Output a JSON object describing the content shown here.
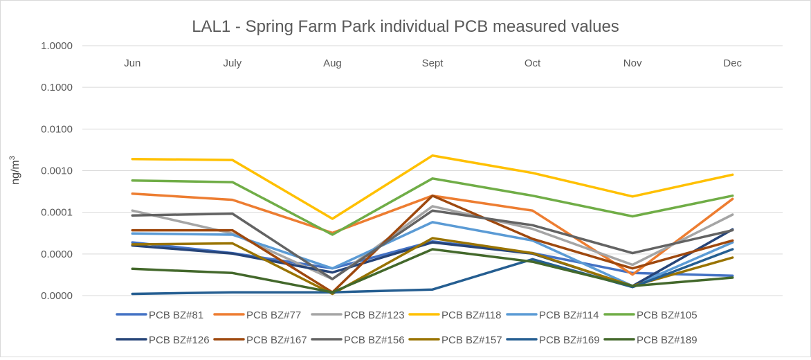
{
  "chart_data": {
    "type": "line",
    "title": "LAL1 - Spring Farm Park individual PCB measured values",
    "xlabel": "",
    "ylabel_base": "ng/m",
    "ylabel_sup": "3",
    "y_scale": "log",
    "ylim": [
      1e-06,
      1
    ],
    "y_tick_values": [
      1e-06,
      1e-05,
      0.0001,
      0.001,
      0.01,
      0.1,
      1
    ],
    "y_tick_labels": [
      "0.0000",
      "0.0000",
      "0.0001",
      "0.0010",
      "0.0100",
      "0.1000",
      "1.0000"
    ],
    "categories": [
      "Jun",
      "July",
      "Aug",
      "Sept",
      "Oct",
      "Nov",
      "Dec"
    ],
    "grid": true,
    "legend_position": "bottom",
    "series": [
      {
        "name": "PCB BZ#81",
        "color": "#4472C4",
        "values": [
          1.9e-05,
          1.05e-05,
          4.5e-06,
          2e-05,
          1.05e-05,
          3.5e-06,
          3e-06
        ]
      },
      {
        "name": "PCB BZ#77",
        "color": "#ED7D31",
        "values": [
          0.00028,
          0.0002,
          3.2e-05,
          0.00025,
          0.00011,
          3.2e-06,
          0.00021
        ]
      },
      {
        "name": "PCB BZ#123",
        "color": "#A5A5A5",
        "values": [
          0.00011,
          3.1e-05,
          2.5e-06,
          0.00014,
          4e-05,
          5.5e-06,
          8.8e-05
        ]
      },
      {
        "name": "PCB BZ#118",
        "color": "#FFC000",
        "values": [
          0.0019,
          0.0018,
          7e-05,
          0.0023,
          0.00088,
          0.00024,
          0.0008
        ]
      },
      {
        "name": "PCB BZ#114",
        "color": "#5B9BD5",
        "values": [
          3.1e-05,
          2.9e-05,
          4.5e-06,
          5.8e-05,
          2.1e-05,
          1.7e-06,
          1.9e-05
        ]
      },
      {
        "name": "PCB BZ#105",
        "color": "#70AD47",
        "values": [
          0.00058,
          0.00053,
          2.9e-05,
          0.00065,
          0.00025,
          8e-05,
          0.00025
        ]
      },
      {
        "name": "PCB BZ#126",
        "color": "#264478",
        "values": [
          1.6e-05,
          1.02e-05,
          3.6e-06,
          1.9e-05,
          1.02e-05,
          1.7e-06,
          3.9e-05
        ]
      },
      {
        "name": "PCB BZ#167",
        "color": "#9E480E",
        "values": [
          3.7e-05,
          3.7e-05,
          1.2e-06,
          0.00025,
          2.3e-05,
          4.5e-06,
          2.1e-05
        ]
      },
      {
        "name": "PCB BZ#156",
        "color": "#636363",
        "values": [
          8.4e-05,
          9.3e-05,
          2.5e-06,
          0.00011,
          4.9e-05,
          1.05e-05,
          3.7e-05
        ]
      },
      {
        "name": "PCB BZ#157",
        "color": "#997300",
        "values": [
          1.7e-05,
          1.8e-05,
          1.1e-06,
          2.4e-05,
          1.05e-05,
          1.7e-06,
          8.2e-06
        ]
      },
      {
        "name": "PCB BZ#169",
        "color": "#255E91",
        "values": [
          1.1e-06,
          1.2e-06,
          1.2e-06,
          1.4e-06,
          7.5e-06,
          1.6e-06,
          1.3e-05
        ]
      },
      {
        "name": "PCB BZ#189",
        "color": "#43682B",
        "values": [
          4.4e-06,
          3.5e-06,
          1.2e-06,
          1.3e-05,
          6.5e-06,
          1.7e-06,
          2.7e-06
        ]
      }
    ]
  }
}
